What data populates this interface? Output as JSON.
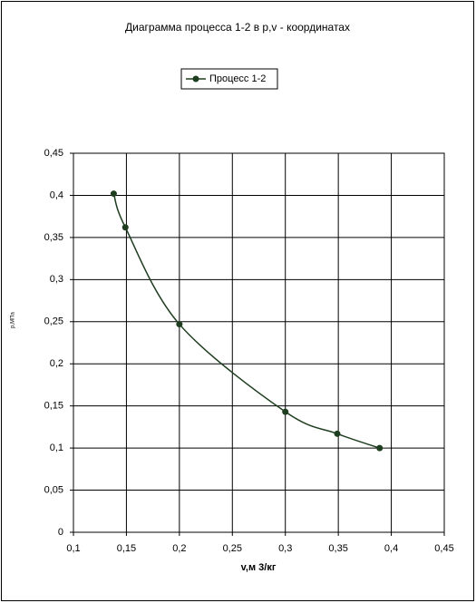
{
  "chart_data": {
    "type": "scatter",
    "title": "Диаграмма процесса 1-2 в p,v - координатах",
    "x_label": "v,м 3/кг",
    "y_label": "p,МПа",
    "series": [
      {
        "name": "Процесс 1-2",
        "color": "#1f3d1f",
        "x": [
          0.138,
          0.149,
          0.2,
          0.3,
          0.349,
          0.389
        ],
        "values": [
          0.402,
          0.362,
          0.247,
          0.143,
          0.117,
          0.1
        ]
      }
    ],
    "xlim": [
      0.1,
      0.45
    ],
    "xticks": [
      {
        "value": 0.1,
        "label": "0,1"
      },
      {
        "value": 0.15,
        "label": "0,15"
      },
      {
        "value": 0.2,
        "label": "0,2"
      },
      {
        "value": 0.25,
        "label": "0,25"
      },
      {
        "value": 0.3,
        "label": "0,3"
      },
      {
        "value": 0.35,
        "label": "0,35"
      },
      {
        "value": 0.4,
        "label": "0,4"
      },
      {
        "value": 0.45,
        "label": "0,45"
      }
    ],
    "ylim": [
      0,
      0.45
    ],
    "yticks": [
      0,
      {
        "value": 0.05,
        "label": "0,05"
      },
      {
        "value": 0.1,
        "label": "0,1"
      },
      {
        "value": 0.15,
        "label": "0,15"
      },
      {
        "value": 0.2,
        "label": "0,2"
      },
      {
        "value": 0.25,
        "label": "0,25"
      },
      {
        "value": 0.3,
        "label": "0,3"
      },
      {
        "value": 0.35,
        "label": "0,35"
      },
      {
        "value": 0.4,
        "label": "0,4"
      },
      {
        "value": 0.45,
        "label": "0,45"
      }
    ],
    "grid": true,
    "smooth": true,
    "legend": "top"
  }
}
